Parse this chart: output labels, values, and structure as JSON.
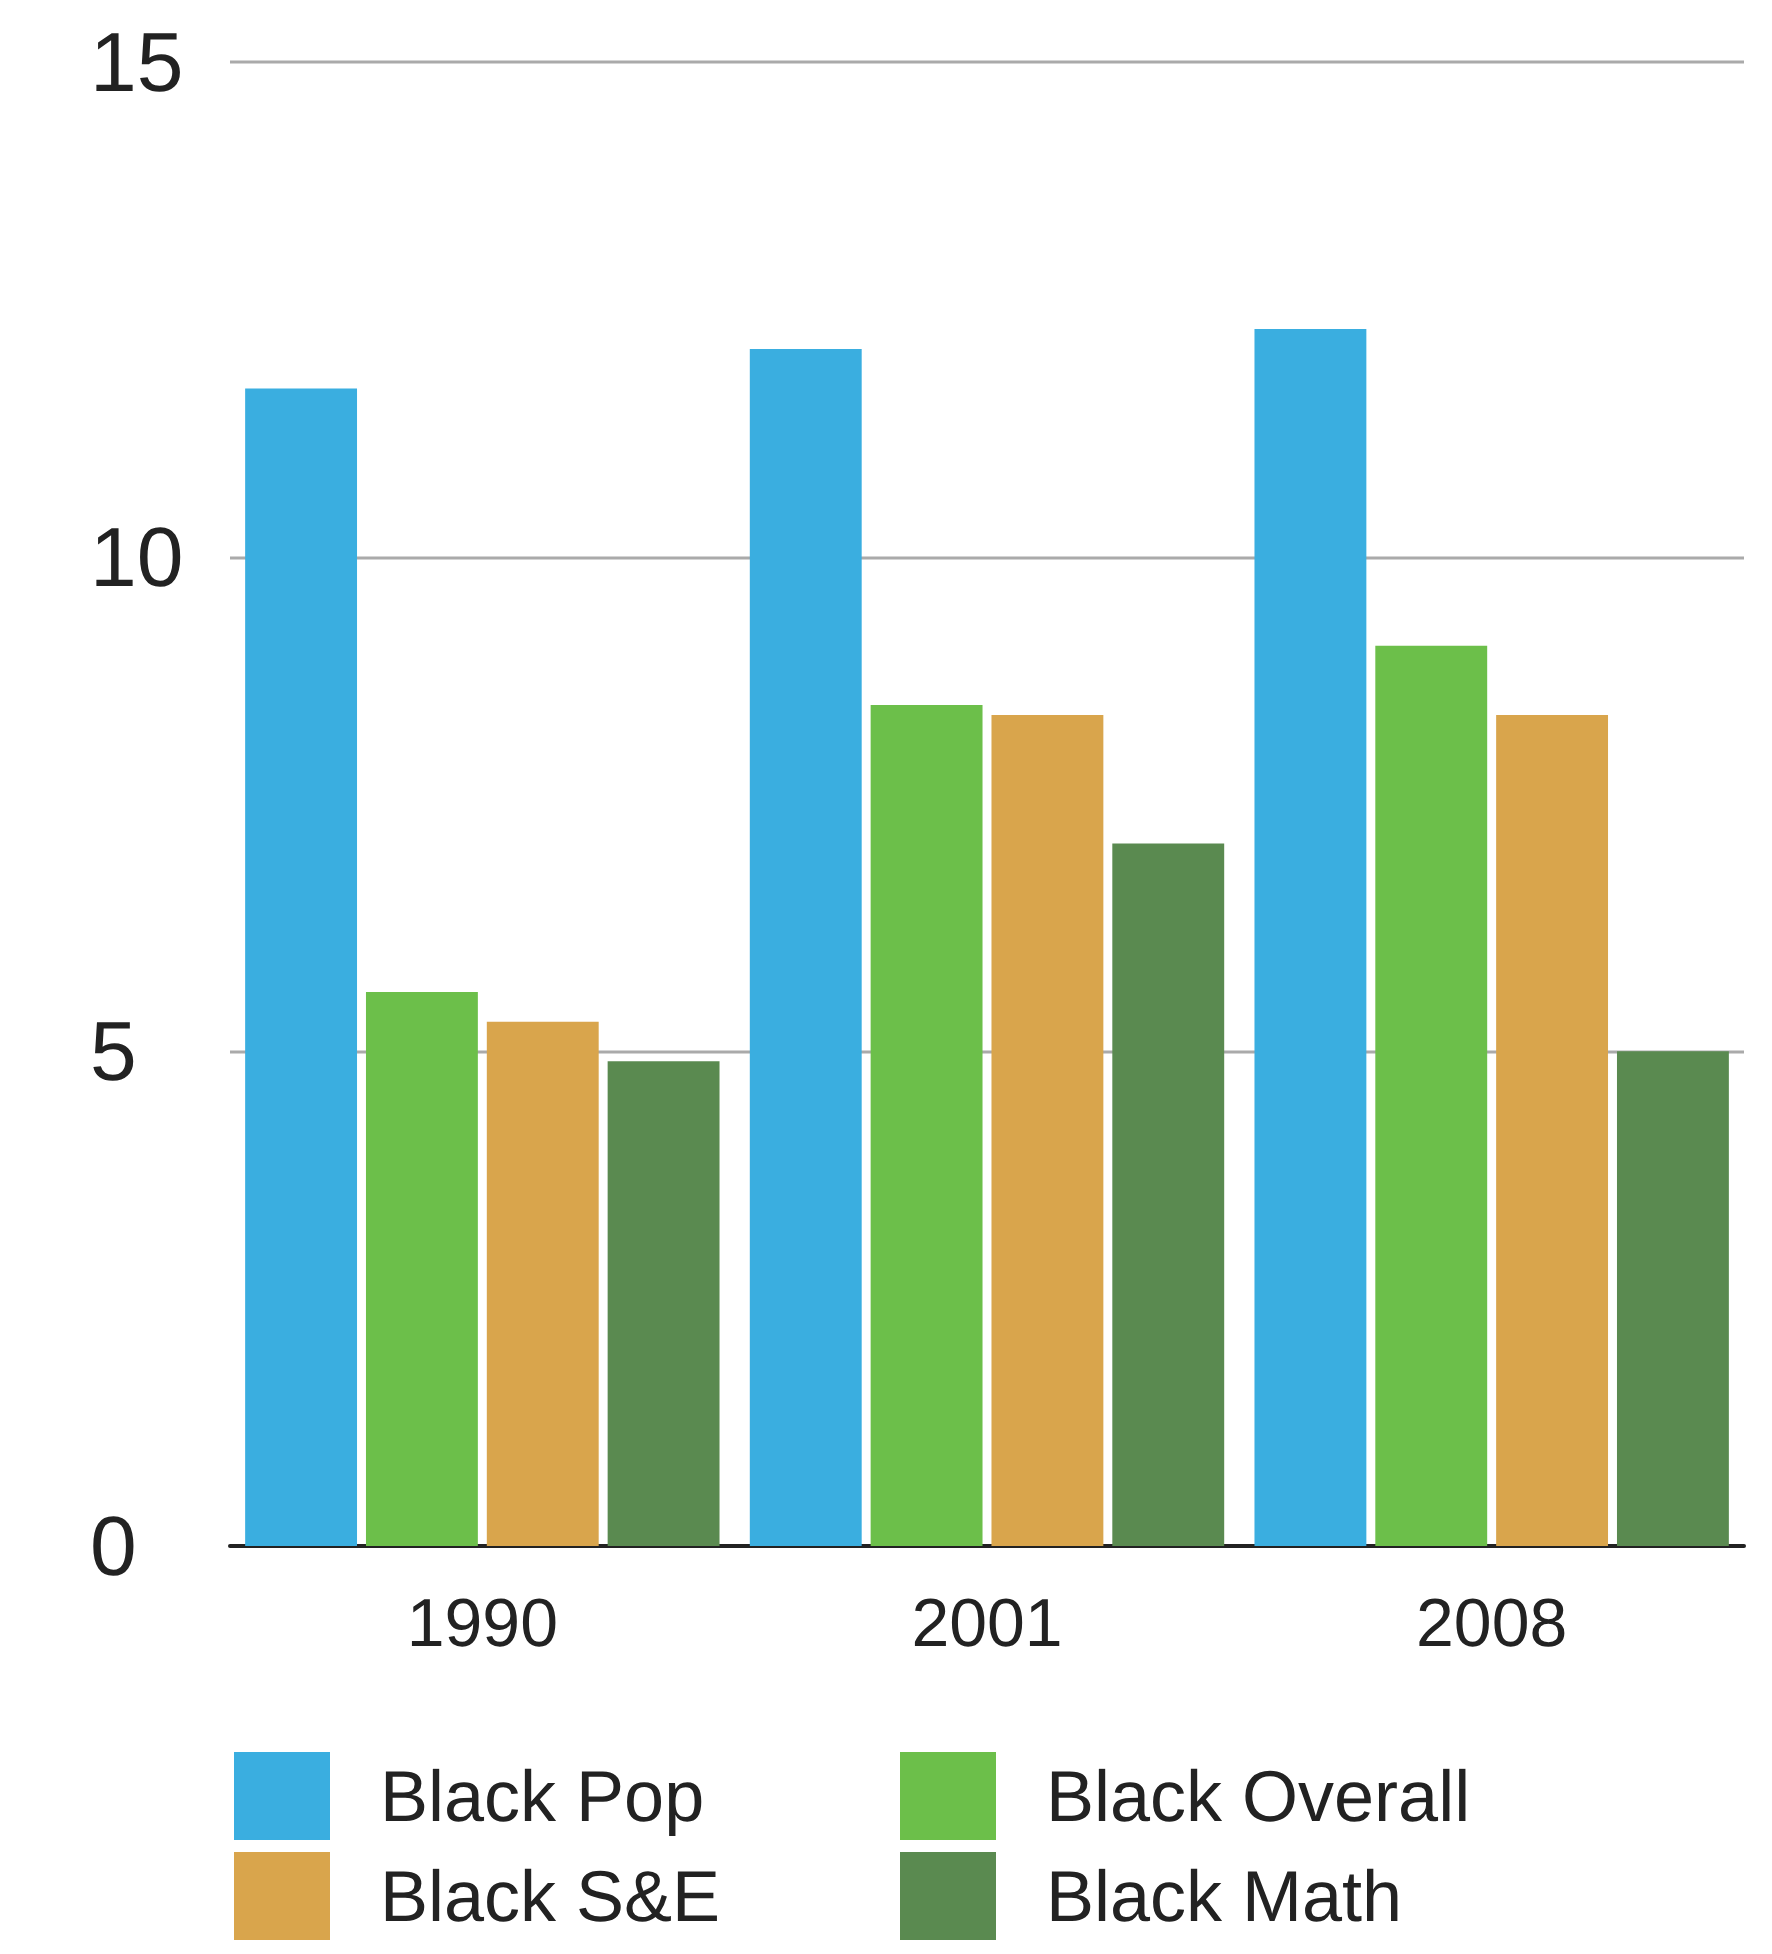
{
  "chart_data": {
    "type": "bar",
    "categories": [
      "1990",
      "2001",
      "2008"
    ],
    "series": [
      {
        "name": "Black Pop",
        "color": "#3aaee0",
        "values": [
          11.7,
          12.1,
          12.3
        ]
      },
      {
        "name": "Black Overall",
        "color": "#6cbf4a",
        "values": [
          5.6,
          8.5,
          9.1
        ]
      },
      {
        "name": "Black S&E",
        "color": "#d9a54c",
        "values": [
          5.3,
          8.4,
          8.4
        ]
      },
      {
        "name": "Black Math",
        "color": "#5a8a50",
        "values": [
          4.9,
          7.1,
          5.0
        ]
      }
    ],
    "ylim": [
      0,
      15
    ],
    "yticks": [
      0,
      5,
      10,
      15
    ],
    "grid": "y",
    "legend": "bottom"
  }
}
